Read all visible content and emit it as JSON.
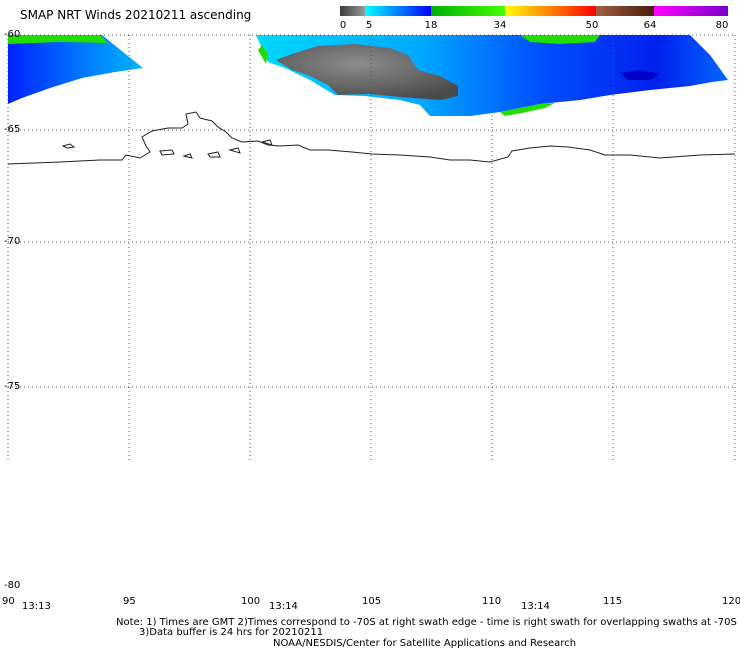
{
  "title": "SMAP NRT Winds 20210211 ascending",
  "colorbar": {
    "segments": [
      {
        "from": "#3c3c3c",
        "to": "#9a9a9a"
      },
      {
        "from": "#00ffff",
        "to": "#0000ff"
      },
      {
        "from": "#00b000",
        "to": "#44ff00"
      },
      {
        "from": "#ffff00",
        "to": "#ff0000"
      },
      {
        "from": "#a06040",
        "to": "#4a1a0a"
      },
      {
        "from": "#ff00ff",
        "to": "#7a00c8"
      }
    ],
    "labels": [
      "0",
      "5",
      "18",
      "34",
      "50",
      "64",
      "80"
    ]
  },
  "y_axis": {
    "labels": [
      "-60",
      "-65",
      "-70",
      "-75",
      "-80"
    ]
  },
  "x_axis": {
    "labels": [
      "90",
      "95",
      "100",
      "105",
      "110",
      "115",
      "120"
    ]
  },
  "times": [
    "13:13",
    "13:14",
    "13:14"
  ],
  "notes": {
    "line1": "Note: 1) Times are GMT 2)Times correspond to -70S at right swath edge - time is right swath for overlapping swaths at -70S",
    "line2": "3)Data buffer is 24 hrs for 20210211",
    "line3": "NOAA/NESDIS/Center for Satellite Applications and Research"
  }
}
